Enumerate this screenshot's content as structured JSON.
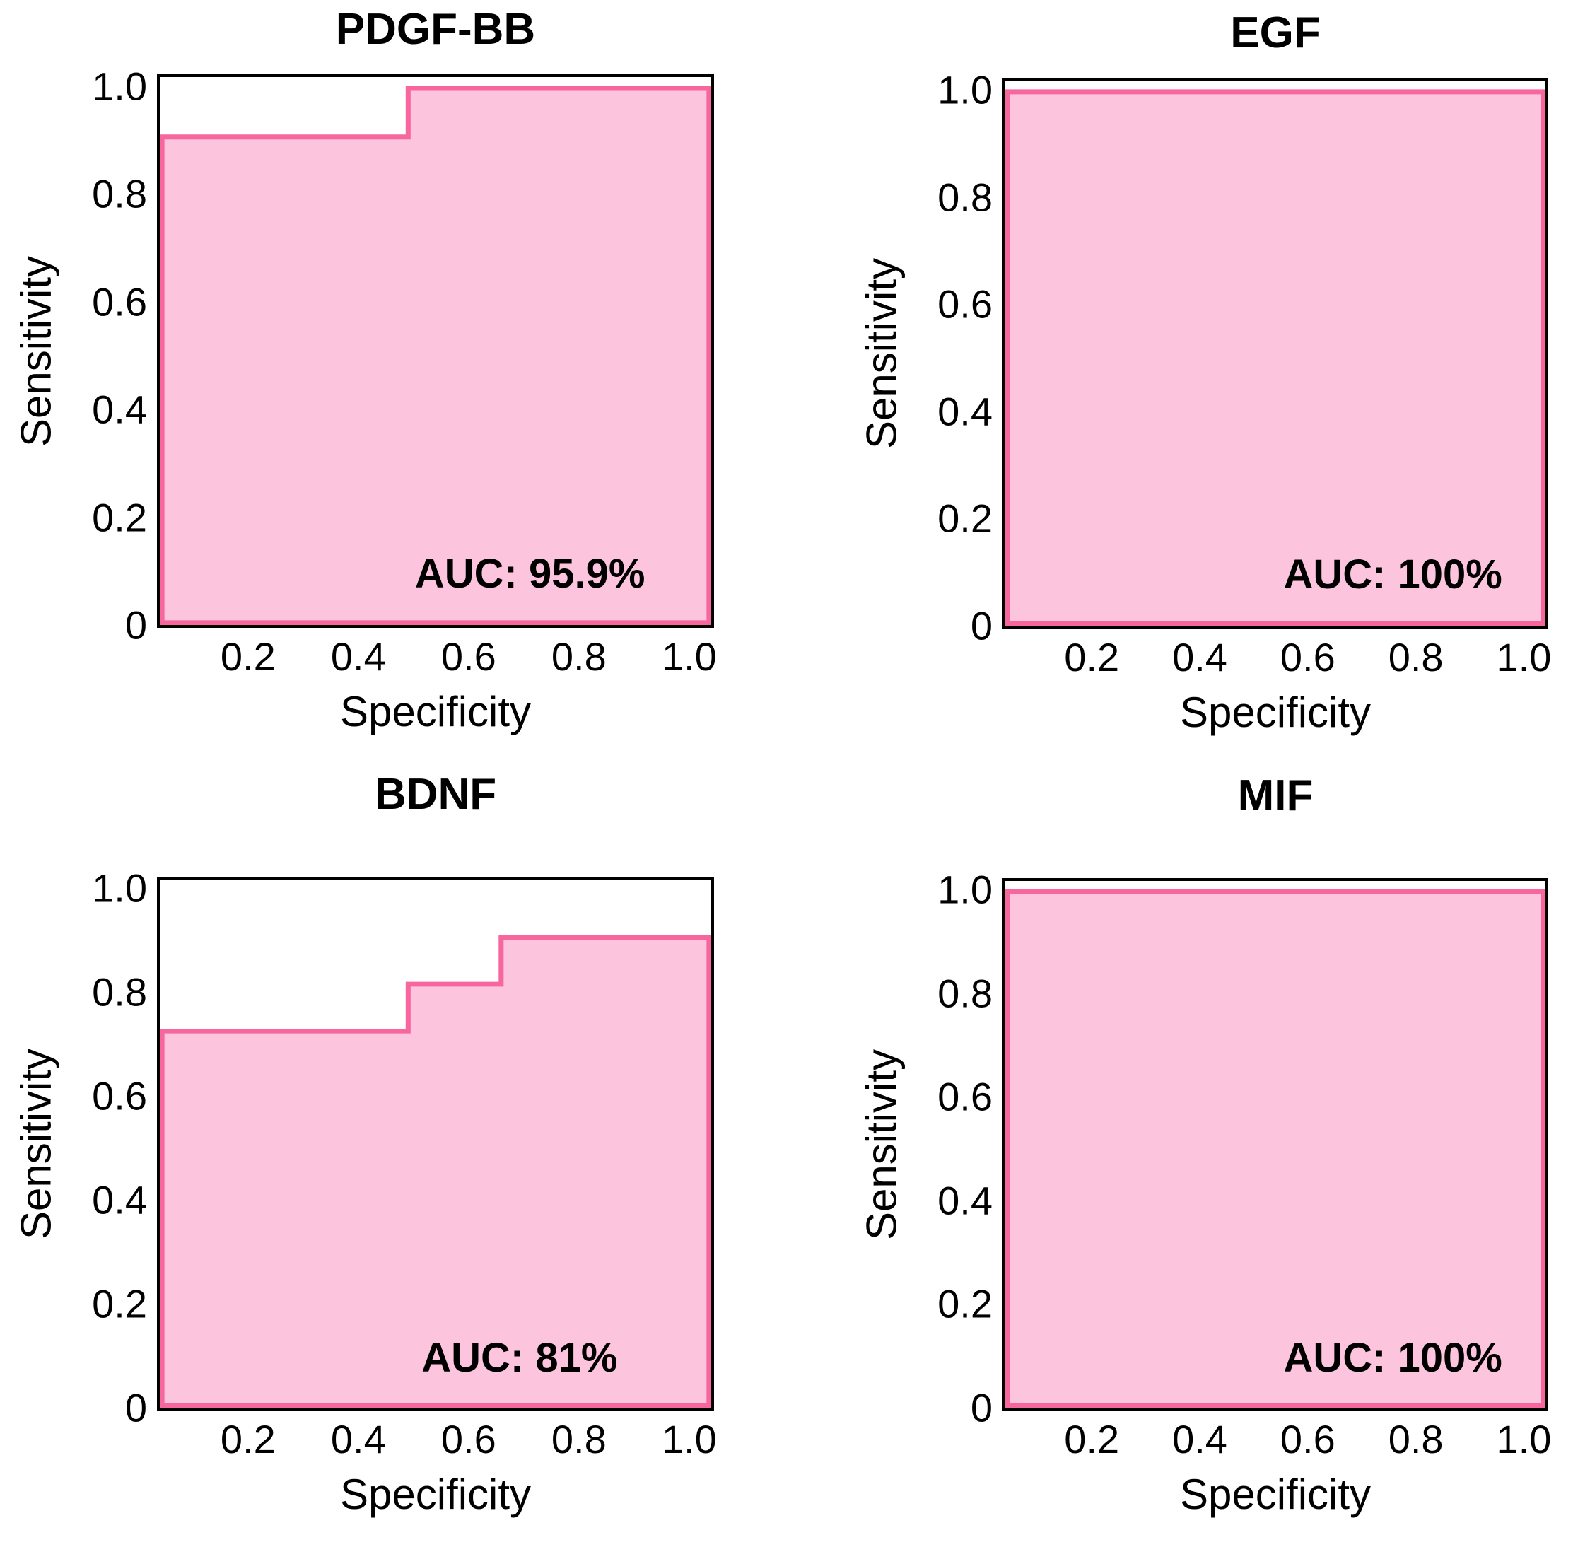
{
  "figure": {
    "background": "#ffffff",
    "text_color": "#000000",
    "layout": "2x2-grid-of-roc-plots"
  },
  "chart_data": [
    {
      "type": "area",
      "subtype": "roc-step-curve-filled",
      "title": "PDGF-BB",
      "xlabel": "Specificity",
      "ylabel": "Sensitivity",
      "auc_label": "AUC: 95.9%",
      "auc_percent": 95.9,
      "x_domain": [
        0.04,
        1.04
      ],
      "y_domain": [
        0,
        1.017
      ],
      "x_ticks": [
        {
          "v": 0.2,
          "label": "0.2"
        },
        {
          "v": 0.4,
          "label": "0.4"
        },
        {
          "v": 0.6,
          "label": "0.6"
        },
        {
          "v": 0.8,
          "label": "0.8"
        },
        {
          "v": 1.0,
          "label": "1.0"
        }
      ],
      "y_ticks": [
        {
          "v": 1.0,
          "label": "1.0"
        },
        {
          "v": 0.8,
          "label": "0.8"
        },
        {
          "v": 0.6,
          "label": "0.6"
        },
        {
          "v": 0.4,
          "label": "0.4"
        },
        {
          "v": 0.2,
          "label": "0.2"
        },
        {
          "v": 0,
          "label": "0"
        }
      ],
      "curve": [
        [
          0.04,
          0.909
        ],
        [
          0.49,
          0.909
        ],
        [
          0.49,
          1.0
        ],
        [
          1.04,
          1.0
        ]
      ],
      "fill_color": "#fcc4dd",
      "stroke_color": "#f7679e",
      "box_color": "#000000",
      "grid": false,
      "legend": false
    },
    {
      "type": "area",
      "subtype": "roc-step-curve-filled",
      "title": "EGF",
      "xlabel": "Specificity",
      "ylabel": "Sensitivity",
      "auc_label": "AUC: 100%",
      "auc_percent": 100,
      "x_domain": [
        0.04,
        1.04
      ],
      "y_domain": [
        0,
        1.017
      ],
      "x_ticks": [
        {
          "v": 0.2,
          "label": "0.2"
        },
        {
          "v": 0.4,
          "label": "0.4"
        },
        {
          "v": 0.6,
          "label": "0.6"
        },
        {
          "v": 0.8,
          "label": "0.8"
        },
        {
          "v": 1.0,
          "label": "1.0"
        }
      ],
      "y_ticks": [
        {
          "v": 1.0,
          "label": "1.0"
        },
        {
          "v": 0.8,
          "label": "0.8"
        },
        {
          "v": 0.6,
          "label": "0.6"
        },
        {
          "v": 0.4,
          "label": "0.4"
        },
        {
          "v": 0.2,
          "label": "0.2"
        },
        {
          "v": 0,
          "label": "0"
        }
      ],
      "curve": [
        [
          0.04,
          1.0
        ],
        [
          1.04,
          1.0
        ]
      ],
      "fill_color": "#fcc4dd",
      "stroke_color": "#f7679e",
      "box_color": "#000000",
      "grid": false,
      "legend": false
    },
    {
      "type": "area",
      "subtype": "roc-step-curve-filled",
      "title": "BDNF",
      "xlabel": "Specificity",
      "ylabel": "Sensitivity",
      "auc_label": "AUC: 81%",
      "auc_percent": 81,
      "x_domain": [
        0.04,
        1.04
      ],
      "y_domain": [
        0,
        1.017
      ],
      "x_ticks": [
        {
          "v": 0.2,
          "label": "0.2"
        },
        {
          "v": 0.4,
          "label": "0.4"
        },
        {
          "v": 0.6,
          "label": "0.6"
        },
        {
          "v": 0.8,
          "label": "0.8"
        },
        {
          "v": 1.0,
          "label": "1.0"
        }
      ],
      "y_ticks": [
        {
          "v": 1.0,
          "label": "1.0"
        },
        {
          "v": 0.8,
          "label": "0.8"
        },
        {
          "v": 0.6,
          "label": "0.6"
        },
        {
          "v": 0.4,
          "label": "0.4"
        },
        {
          "v": 0.2,
          "label": "0.2"
        },
        {
          "v": 0,
          "label": "0"
        }
      ],
      "curve": [
        [
          0.04,
          0.727
        ],
        [
          0.49,
          0.727
        ],
        [
          0.49,
          0.818
        ],
        [
          0.66,
          0.818
        ],
        [
          0.66,
          0.909
        ],
        [
          1.04,
          0.909
        ]
      ],
      "fill_color": "#fcc4dd",
      "stroke_color": "#f7679e",
      "box_color": "#000000",
      "grid": false,
      "legend": false
    },
    {
      "type": "area",
      "subtype": "roc-step-curve-filled",
      "title": "MIF",
      "xlabel": "Specificity",
      "ylabel": "Sensitivity",
      "auc_label": "AUC: 100%",
      "auc_percent": 100,
      "x_domain": [
        0.04,
        1.04
      ],
      "y_domain": [
        0,
        1.017
      ],
      "x_ticks": [
        {
          "v": 0.2,
          "label": "0.2"
        },
        {
          "v": 0.4,
          "label": "0.4"
        },
        {
          "v": 0.6,
          "label": "0.6"
        },
        {
          "v": 0.8,
          "label": "0.8"
        },
        {
          "v": 1.0,
          "label": "1.0"
        }
      ],
      "y_ticks": [
        {
          "v": 1.0,
          "label": "1.0"
        },
        {
          "v": 0.8,
          "label": "0.8"
        },
        {
          "v": 0.6,
          "label": "0.6"
        },
        {
          "v": 0.4,
          "label": "0.4"
        },
        {
          "v": 0.2,
          "label": "0.2"
        },
        {
          "v": 0,
          "label": "0"
        }
      ],
      "curve": [
        [
          0.04,
          1.0
        ],
        [
          1.04,
          1.0
        ]
      ],
      "fill_color": "#fcc4dd",
      "stroke_color": "#f7679e",
      "box_color": "#000000",
      "grid": false,
      "legend": false
    }
  ]
}
